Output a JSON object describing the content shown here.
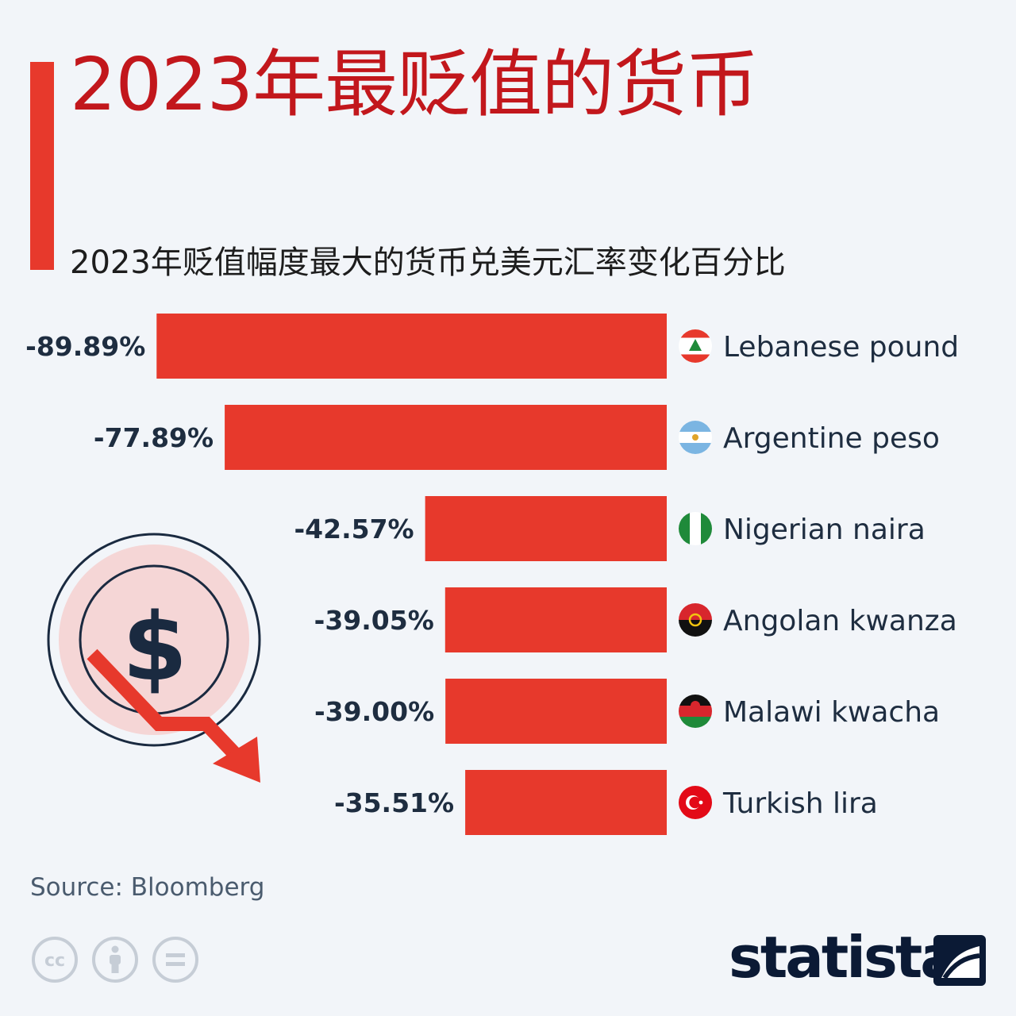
{
  "title": "2023年最贬值的货币",
  "subtitle": "2023年贬值幅度最大的货币兑美元汇率变化百分比",
  "chart_data": {
    "type": "bar",
    "orientation": "horizontal",
    "categories": [
      "Lebanese pound",
      "Argentine peso",
      "Nigerian naira",
      "Angolan kwanza",
      "Malawi kwacha",
      "Turkish lira"
    ],
    "values": [
      -89.89,
      -77.89,
      -42.57,
      -39.05,
      -39.0,
      -35.51
    ],
    "value_labels": [
      "-89.89%",
      "-77.89%",
      "-42.57%",
      "-39.05%",
      "-39.00%",
      "-35.51%"
    ],
    "flags": [
      "lebanon-flag-icon",
      "argentina-flag-icon",
      "nigeria-flag-icon",
      "angola-flag-icon",
      "malawi-flag-icon",
      "turkey-flag-icon"
    ],
    "xlim": [
      -100,
      0
    ],
    "bar_color": "#e7392c",
    "label_color": "#1e2d40",
    "grid": false,
    "legend": "none"
  },
  "source": "Source: Bloomberg",
  "brand": {
    "name": "statista"
  },
  "colors": {
    "accent": "#e7392c",
    "title": "#c2171c",
    "background": "#f2f5f9",
    "navy": "#0b1a35"
  },
  "icons": [
    "cc-icon",
    "attribution-icon",
    "no-derivatives-icon",
    "dollar-decline-icon"
  ]
}
